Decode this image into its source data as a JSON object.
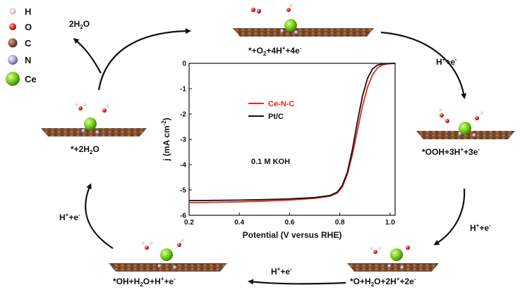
{
  "legend": {
    "items": [
      {
        "symbol": "H",
        "color": "#f2dcdc"
      },
      {
        "symbol": "O",
        "color": "#e8261b"
      },
      {
        "symbol": "C",
        "color": "#8b5a3c"
      },
      {
        "symbol": "N",
        "color": "#a8a8d0"
      },
      {
        "symbol": "Ce",
        "color": "#7fd21e"
      }
    ]
  },
  "cycle": {
    "states": [
      {
        "id": "o2",
        "label": "*+O2+4H+ +4e-",
        "parts": [
          "*+O",
          "2",
          "+4H",
          "+",
          "+4e",
          "-"
        ]
      },
      {
        "id": "ooh",
        "label": "*OOH+3H+ +3e-",
        "parts": [
          "*OOH+3H",
          "+",
          "+3e",
          "-"
        ]
      },
      {
        "id": "o",
        "label": "*O+H2O+2H+ +2e-",
        "parts": [
          "*O+H",
          "2",
          "O+2H",
          "+",
          "+2e",
          "-"
        ]
      },
      {
        "id": "oh",
        "label": "*OH+H2O+H+ +e-",
        "parts": [
          "*OH+H",
          "2",
          "O+H",
          "+",
          "+e",
          "-"
        ]
      },
      {
        "id": "h2o",
        "label": "*+2H2O",
        "parts": [
          "*+2H",
          "2",
          "O"
        ]
      }
    ],
    "steps": [
      {
        "id": "step1",
        "parts": [
          "H",
          "+",
          "+e",
          "-"
        ]
      },
      {
        "id": "step2",
        "parts": [
          "H",
          "+",
          "+e",
          "-"
        ]
      },
      {
        "id": "step3",
        "parts": [
          "H",
          "+",
          "+e",
          "-"
        ]
      },
      {
        "id": "step4",
        "parts": [
          "H",
          "+",
          "+e",
          "-"
        ]
      },
      {
        "id": "release",
        "parts": [
          "2H",
          "2",
          "O"
        ]
      }
    ]
  },
  "chart_data": {
    "type": "line",
    "xlabel": "Potential (V versus RHE)",
    "ylabel": "j (mA cm-2)",
    "xlim": [
      0.2,
      1.02
    ],
    "ylim": [
      -6,
      0
    ],
    "xticks": [
      "0.2",
      "0.4",
      "0.6",
      "0.8",
      "1.0"
    ],
    "yticks": [
      "0",
      "-1",
      "-2",
      "-3",
      "-4",
      "-5",
      "-6"
    ],
    "annotation": "0.1  M KOH",
    "legend_position": "upper-left",
    "series": [
      {
        "name": "Ce-N-C",
        "color": "#e8261b",
        "x": [
          0.2,
          0.3,
          0.4,
          0.5,
          0.6,
          0.7,
          0.76,
          0.79,
          0.81,
          0.83,
          0.85,
          0.87,
          0.89,
          0.91,
          0.93,
          0.95,
          0.97,
          0.99,
          1.02
        ],
        "y": [
          -5.5,
          -5.49,
          -5.47,
          -5.44,
          -5.4,
          -5.33,
          -5.25,
          -5.12,
          -4.88,
          -4.38,
          -3.6,
          -2.65,
          -1.7,
          -0.95,
          -0.45,
          -0.18,
          -0.06,
          -0.02,
          0.0
        ]
      },
      {
        "name": "Pt/C",
        "color": "#111111",
        "x": [
          0.2,
          0.3,
          0.4,
          0.5,
          0.6,
          0.7,
          0.76,
          0.79,
          0.81,
          0.83,
          0.85,
          0.87,
          0.89,
          0.91,
          0.93,
          0.95,
          0.97,
          0.99,
          1.02
        ],
        "y": [
          -5.42,
          -5.41,
          -5.4,
          -5.38,
          -5.35,
          -5.3,
          -5.22,
          -5.08,
          -4.82,
          -4.3,
          -3.4,
          -2.3,
          -1.3,
          -0.6,
          -0.22,
          -0.07,
          -0.02,
          -0.01,
          0.0
        ]
      }
    ]
  }
}
